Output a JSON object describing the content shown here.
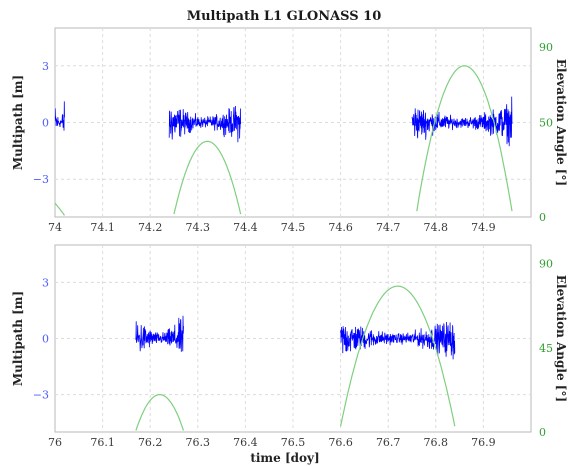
{
  "chart_data": [
    {
      "type": "line",
      "title": "Multipath L1 GLONASS 10",
      "xlabel": "",
      "ylabel": "Multipath [m]",
      "y2label": "Elevation Angle [°]",
      "xlim": [
        74.0,
        75.0
      ],
      "ylim": [
        -5.0,
        5.0
      ],
      "y2lim": [
        0,
        100
      ],
      "xticks": [
        "74",
        "74.1",
        "74.2",
        "74.3",
        "74.4",
        "74.5",
        "74.6",
        "74.7",
        "74.8",
        "74.9"
      ],
      "yticks": [
        "3",
        "0",
        "−3"
      ],
      "y2ticks": [
        "90",
        "50",
        "0"
      ],
      "grid": true,
      "series": [
        {
          "kind": "multipath-noise",
          "color": "#0000ff",
          "segments": [
            {
              "x": [
                74.0,
                74.02
              ],
              "amplitude": [
                1.4,
                1.6
              ]
            },
            {
              "x": [
                74.24,
                74.39
              ],
              "amplitude": [
                1.7,
                1.5
              ]
            },
            {
              "x": [
                74.75,
                74.96
              ],
              "amplitude": [
                1.5,
                1.6
              ]
            }
          ]
        },
        {
          "kind": "elevation",
          "color": "#7fcf7f",
          "arcs": [
            {
              "x": [
                73.97,
                74.02
              ],
              "peak_x": 73.9,
              "peak_y": 22
            },
            {
              "x": [
                74.25,
                74.39
              ],
              "peak_x": 74.32,
              "peak_y": 40
            },
            {
              "x": [
                74.76,
                74.96
              ],
              "peak_x": 74.86,
              "peak_y": 80
            }
          ]
        }
      ]
    },
    {
      "type": "line",
      "title": "",
      "xlabel": "time [doy]",
      "ylabel": "Multipath [m]",
      "y2label": "Elevation Angle [°]",
      "xlim": [
        76.0,
        77.0
      ],
      "ylim": [
        -5.0,
        5.0
      ],
      "y2lim": [
        0,
        100
      ],
      "xticks": [
        "76",
        "76.1",
        "76.2",
        "76.3",
        "76.4",
        "76.5",
        "76.6",
        "76.7",
        "76.8",
        "76.9"
      ],
      "yticks": [
        "3",
        "0",
        "−3"
      ],
      "y2ticks": [
        "90",
        "45",
        "0"
      ],
      "grid": true,
      "series": [
        {
          "kind": "multipath-noise",
          "color": "#0000ff",
          "segments": [
            {
              "x": [
                76.17,
                76.27
              ],
              "amplitude": [
                1.7,
                1.7
              ]
            },
            {
              "x": [
                76.6,
                76.84
              ],
              "amplitude": [
                1.5,
                1.6
              ]
            }
          ]
        },
        {
          "kind": "elevation",
          "color": "#7fcf7f",
          "arcs": [
            {
              "x": [
                76.17,
                76.27
              ],
              "peak_x": 76.22,
              "peak_y": 20
            },
            {
              "x": [
                76.6,
                76.84
              ],
              "peak_x": 76.72,
              "peak_y": 78
            }
          ]
        }
      ]
    }
  ]
}
